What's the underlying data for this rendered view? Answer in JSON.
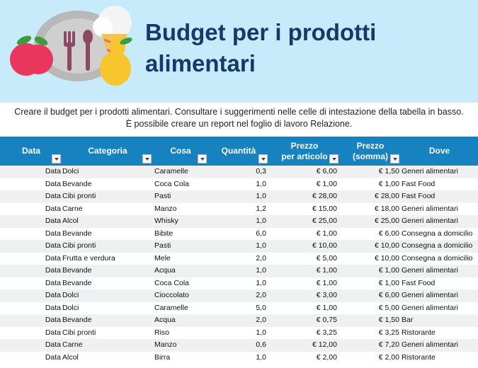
{
  "banner": {
    "title": "Budget per i prodotti alimentari",
    "art_colors": {
      "plate": "#b8b8b8",
      "utensils": "#8b4a63",
      "apple": "#e8365d",
      "pear": "#f7c52e",
      "leaf": "#3f9b3a"
    }
  },
  "description": [
    "Creare il budget per i prodotti alimentari. Consultare i suggerimenti nelle celle di intestazione della tabella in basso.",
    "È possibile creare un report nel foglio di lavoro Relazione."
  ],
  "table": {
    "header_color": "#1682bf",
    "columns": [
      {
        "label": "Data"
      },
      {
        "label": "Categoria"
      },
      {
        "label": "Cosa"
      },
      {
        "label": "Quantità"
      },
      {
        "label": "Prezzo\nper articolo"
      },
      {
        "label": "Prezzo\n(somma)"
      },
      {
        "label": "Dove"
      }
    ],
    "rows": [
      [
        "Data",
        "Dolci",
        "Caramelle",
        "0,3",
        "€ 6,00",
        "€ 1,50",
        "Generi alimentari"
      ],
      [
        "Data",
        "Bevande",
        "Coca Cola",
        "1,0",
        "€ 1,00",
        "€ 1,00",
        "Fast Food"
      ],
      [
        "Data",
        "Cibi pronti",
        "Pasti",
        "1,0",
        "€ 28,00",
        "€ 28,00",
        "Fast Food"
      ],
      [
        "Data",
        "Carne",
        "Manzo",
        "1,2",
        "€ 15,00",
        "€ 18,00",
        "Generi alimentari"
      ],
      [
        "Data",
        "Alcol",
        "Whisky",
        "1,0",
        "€ 25,00",
        "€ 25,00",
        "Generi alimentari"
      ],
      [
        "Data",
        "Bevande",
        "Bibite",
        "6,0",
        "€ 1,00",
        "€ 6,00",
        "Consegna a domicilio"
      ],
      [
        "Data",
        "Cibi pronti",
        "Pasti",
        "1,0",
        "€ 10,00",
        "€ 10,00",
        "Consegna a domicilio"
      ],
      [
        "Data",
        "Frutta e verdura",
        "Mele",
        "2,0",
        "€ 5,00",
        "€ 10,00",
        "Consegna a domicilio"
      ],
      [
        "Data",
        "Bevande",
        "Acqua",
        "1,0",
        "€ 1,00",
        "€ 1,00",
        "Generi alimentari"
      ],
      [
        "Data",
        "Bevande",
        "Coca Cola",
        "1,0",
        "€ 1,00",
        "€ 1,00",
        "Fast Food"
      ],
      [
        "Data",
        "Dolci",
        "Cioccolato",
        "2,0",
        "€ 3,00",
        "€ 6,00",
        "Generi alimentari"
      ],
      [
        "Data",
        "Dolci",
        "Caramelle",
        "5,0",
        "€ 1,00",
        "€ 5,00",
        "Generi alimentari"
      ],
      [
        "Data",
        "Bevande",
        "Acqua",
        "2,0",
        "€ 0,75",
        "€ 1,50",
        "Bar"
      ],
      [
        "Data",
        "Cibi pronti",
        "Riso",
        "1,0",
        "€ 3,25",
        "€ 3,25",
        "Ristorante"
      ],
      [
        "Data",
        "Carne",
        "Manzo",
        "0,6",
        "€ 12,00",
        "€ 7,20",
        "Generi alimentari"
      ],
      [
        "Data",
        "Alcol",
        "Birra",
        "1,0",
        "€ 2,00",
        "€ 2,00",
        "Ristorante"
      ]
    ]
  }
}
